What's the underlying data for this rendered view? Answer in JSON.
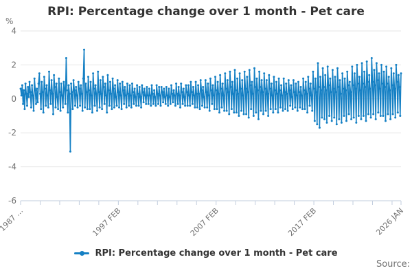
{
  "header": {
    "title": "RPI: Percentage change over 1 month - Pet care"
  },
  "chart_data": {
    "type": "line",
    "title": "RPI: Percentage change over 1 month - Pet care",
    "unit_label": "%",
    "ylabel": "%",
    "ylim": [
      -6,
      4
    ],
    "y_ticks": [
      4,
      2,
      0,
      -2,
      -4,
      -6
    ],
    "grid": true,
    "legend_position": "bottom",
    "x_start": "1987 FEB",
    "x_end": "2026 JAN",
    "x_axis_labels": [
      {
        "label": "1987 …",
        "month_index": 0
      },
      {
        "label": "1997 FEB",
        "month_index": 120
      },
      {
        "label": "2007 FEB",
        "month_index": 240
      },
      {
        "label": "2017 FEB",
        "month_index": 360
      },
      {
        "label": "2026 JAN",
        "month_index": 467
      }
    ],
    "minor_tick_every_months": 24,
    "series": [
      {
        "name": "RPI: Percentage change over 1 month - Pet care",
        "color": "#1580c4",
        "frequency": "monthly",
        "start": "1987-02",
        "end": "2026-01",
        "values": [
          0.6,
          0.2,
          0.8,
          -0.3,
          0.5,
          -0.6,
          0.9,
          0.3,
          -0.4,
          0.7,
          0.1,
          1.0,
          0.4,
          -0.5,
          0.8,
          0.2,
          -0.7,
          1.2,
          0.5,
          -0.3,
          0.6,
          -0.2,
          0.9,
          1.5,
          0.3,
          -0.6,
          1.0,
          0.4,
          -0.8,
          1.3,
          0.6,
          -0.4,
          0.8,
          0.2,
          -0.5,
          1.6,
          0.5,
          -0.3,
          1.1,
          0.3,
          -0.9,
          1.4,
          0.7,
          -0.5,
          0.9,
          0.1,
          -0.6,
          1.2,
          0.4,
          -0.7,
          0.9,
          0.2,
          -0.5,
          1.0,
          0.6,
          -0.3,
          2.4,
          0.5,
          -0.8,
          0.8,
          0.3,
          -3.1,
          0.9,
          0.4,
          -0.6,
          1.1,
          0.5,
          -0.4,
          0.7,
          0.2,
          -0.5,
          1.0,
          0.6,
          -0.4,
          0.8,
          0.3,
          -0.7,
          1.2,
          2.9,
          -0.5,
          0.9,
          0.4,
          -0.6,
          1.3,
          0.5,
          -0.6,
          1.0,
          0.2,
          -0.8,
          1.5,
          0.6,
          -0.4,
          0.8,
          0.3,
          -0.7,
          1.6,
          0.4,
          -0.5,
          1.1,
          0.3,
          -0.6,
          1.3,
          0.7,
          -0.3,
          0.9,
          0.2,
          -0.8,
          1.4,
          0.5,
          -0.4,
          1.0,
          0.3,
          -0.6,
          1.2,
          0.6,
          -0.5,
          0.8,
          0.1,
          -0.4,
          1.1,
          0.4,
          -0.5,
          0.9,
          0.2,
          -0.6,
          1.0,
          0.5,
          -0.3,
          0.7,
          0.2,
          -0.5,
          0.9,
          0.3,
          -0.4,
          0.8,
          0.2,
          -0.5,
          0.9,
          0.4,
          -0.3,
          0.6,
          0.1,
          -0.4,
          0.8,
          0.3,
          -0.4,
          0.7,
          0.1,
          -0.5,
          0.8,
          0.4,
          -0.2,
          0.6,
          0.2,
          -0.3,
          0.7,
          0.2,
          -0.3,
          0.6,
          0.2,
          -0.4,
          0.8,
          0.3,
          -0.3,
          0.5,
          0.1,
          -0.4,
          0.8,
          0.3,
          -0.3,
          0.7,
          0.2,
          -0.4,
          0.7,
          0.4,
          -0.2,
          0.6,
          0.1,
          -0.3,
          0.7,
          0.2,
          -0.4,
          0.6,
          0.1,
          -0.3,
          0.8,
          0.3,
          -0.2,
          0.5,
          0.2,
          -0.4,
          0.9,
          0.3,
          -0.3,
          0.7,
          0.2,
          -0.5,
          0.9,
          0.4,
          -0.3,
          0.6,
          0.1,
          -0.4,
          0.8,
          0.4,
          -0.4,
          0.8,
          0.2,
          -0.4,
          1.0,
          0.4,
          -0.3,
          0.7,
          0.2,
          -0.5,
          1.0,
          0.3,
          -0.5,
          0.8,
          0.3,
          -0.6,
          1.1,
          0.5,
          -0.4,
          0.7,
          0.1,
          -0.5,
          1.1,
          0.4,
          -0.5,
          0.9,
          0.2,
          -0.7,
          1.2,
          0.5,
          -0.3,
          0.8,
          0.2,
          -0.6,
          1.3,
          0.5,
          -0.6,
          1.0,
          0.3,
          -0.8,
          1.4,
          0.6,
          -0.5,
          0.9,
          0.2,
          -0.7,
          1.5,
          0.6,
          -0.7,
          1.1,
          0.4,
          -0.9,
          1.6,
          0.7,
          -0.6,
          1.0,
          0.3,
          -0.8,
          1.7,
          0.5,
          -0.8,
          1.2,
          0.3,
          -1.0,
          1.5,
          0.6,
          -0.7,
          1.1,
          0.2,
          -0.9,
          1.6,
          0.6,
          -0.9,
          1.3,
          0.4,
          -1.1,
          1.7,
          0.8,
          -0.6,
          1.0,
          0.3,
          -1.0,
          1.8,
          0.7,
          -0.8,
          1.2,
          0.5,
          -1.2,
          1.6,
          0.7,
          -0.7,
          1.1,
          0.4,
          -0.9,
          1.5,
          0.6,
          -0.7,
          1.1,
          0.3,
          -1.0,
          1.4,
          0.6,
          -0.6,
          0.9,
          0.2,
          -0.8,
          1.3,
          0.5,
          -0.6,
          1.0,
          0.3,
          -0.8,
          1.2,
          0.5,
          -0.5,
          0.8,
          0.2,
          -0.7,
          1.2,
          0.4,
          -0.6,
          0.9,
          0.3,
          -0.7,
          1.1,
          0.5,
          -0.4,
          0.8,
          0.1,
          -0.6,
          1.1,
          0.4,
          -0.5,
          0.9,
          0.2,
          -0.7,
          1.0,
          0.4,
          -0.5,
          0.7,
          0.2,
          -0.6,
          1.2,
          0.5,
          -0.6,
          1.0,
          0.3,
          -0.8,
          1.3,
          0.6,
          -0.4,
          0.9,
          0.2,
          -0.7,
          1.6,
          0.6,
          -1.3,
          1.2,
          0.4,
          -1.5,
          2.1,
          0.7,
          -1.7,
          1.3,
          0.5,
          -1.1,
          1.8,
          0.7,
          -1.2,
          1.4,
          0.5,
          -1.4,
          1.9,
          0.8,
          -1.0,
          1.2,
          0.4,
          -1.3,
          1.7,
          0.6,
          -1.1,
          1.3,
          0.4,
          -1.5,
          1.8,
          0.7,
          -1.2,
          1.1,
          0.3,
          -1.4,
          1.5,
          0.6,
          -1.0,
          1.2,
          0.5,
          -1.3,
          1.6,
          0.8,
          -0.9,
          1.0,
          0.4,
          -1.2,
          1.9,
          0.8,
          -1.1,
          1.5,
          0.6,
          -1.4,
          2.0,
          0.9,
          -1.0,
          1.3,
          0.5,
          -1.2,
          2.1,
          0.9,
          -1.0,
          1.6,
          0.7,
          -1.3,
          2.2,
          1.0,
          -0.9,
          1.4,
          0.6,
          -1.1,
          2.4,
          1.0,
          -0.9,
          1.7,
          0.8,
          -1.2,
          2.1,
          1.1,
          -0.8,
          1.5,
          0.6,
          -1.0,
          2.0,
          0.9,
          -1.0,
          1.6,
          0.7,
          -1.3,
          1.9,
          0.9,
          -0.9,
          1.3,
          0.5,
          -1.2,
          1.8,
          0.8,
          -0.9,
          1.5,
          0.6,
          -1.1,
          2.0,
          1.0,
          -0.8,
          1.4,
          0.7,
          -1.0,
          1.5
        ]
      }
    ]
  },
  "legend": {
    "marker_color": "#1580c4",
    "label": "RPI: Percentage change over 1 month - Pet care"
  },
  "footer": {
    "source_label": "Source:"
  },
  "colors": {
    "line": "#1580c4",
    "grid": "#e6e6e6",
    "axis": "#c2cdde",
    "text_dark": "#333333",
    "text_gray": "#707070",
    "background": "#ffffff"
  }
}
